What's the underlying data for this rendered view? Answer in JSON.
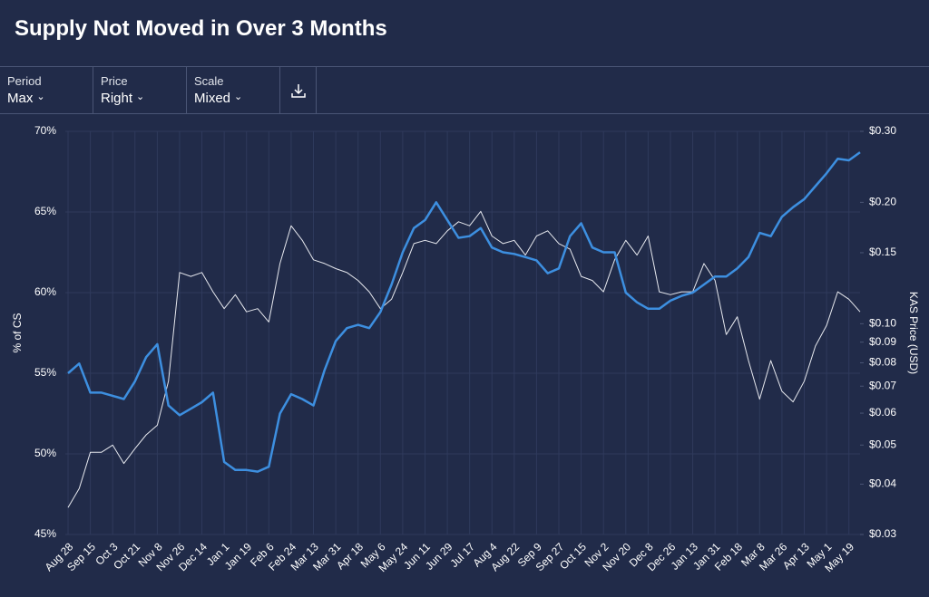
{
  "header": {
    "title": "Supply Not Moved in Over 3 Months"
  },
  "toolbar": [
    {
      "label": "Period",
      "value": "Max"
    },
    {
      "label": "Price",
      "value": "Right"
    },
    {
      "label": "Scale",
      "value": "Mixed"
    }
  ],
  "chart_data": {
    "type": "line",
    "ylabel": "% of CS",
    "y2label": "KAS Price (USD)",
    "ylim": [
      45,
      70
    ],
    "yticks": [
      {
        "value": 45,
        "label": "45%"
      },
      {
        "value": 50,
        "label": "50%"
      },
      {
        "value": 55,
        "label": "55%"
      },
      {
        "value": 60,
        "label": "60%"
      },
      {
        "value": 65,
        "label": "65%"
      },
      {
        "value": 70,
        "label": "70%"
      }
    ],
    "y2lim": [
      0.03,
      0.3
    ],
    "y2scale": "log",
    "y2ticks": [
      {
        "value": 0.03,
        "label": "$0.03"
      },
      {
        "value": 0.04,
        "label": "$0.04"
      },
      {
        "value": 0.05,
        "label": "$0.05"
      },
      {
        "value": 0.06,
        "label": "$0.06"
      },
      {
        "value": 0.07,
        "label": "$0.07"
      },
      {
        "value": 0.08,
        "label": "$0.08"
      },
      {
        "value": 0.09,
        "label": "$0.09"
      },
      {
        "value": 0.1,
        "label": "$0.10"
      },
      {
        "value": 0.15,
        "label": "$0.15"
      },
      {
        "value": 0.2,
        "label": "$0.20"
      },
      {
        "value": 0.3,
        "label": "$0.30"
      }
    ],
    "grid": true,
    "categories": [
      "Aug 28",
      null,
      "Sep 15",
      null,
      "Oct 3",
      null,
      "Oct 21",
      null,
      "Nov 8",
      null,
      "Nov 26",
      null,
      "Dec 14",
      null,
      "Jan 1",
      null,
      "Jan 19",
      null,
      "Feb 6",
      null,
      "Feb 24",
      null,
      "Mar 13",
      null,
      "Mar 31",
      null,
      "Apr 18",
      null,
      "May 6",
      null,
      "May 24",
      null,
      "Jun 11",
      null,
      "Jun 29",
      null,
      "Jul 17",
      null,
      "Aug 4",
      null,
      "Aug 22",
      null,
      "Sep 9",
      null,
      "Sep 27",
      null,
      "Oct 15",
      null,
      "Nov 2",
      null,
      "Nov 20",
      null,
      "Dec 8",
      null,
      "Dec 26",
      null,
      "Jan 13",
      null,
      "Jan 31",
      null,
      "Feb 18",
      null,
      "Mar 8",
      null,
      "Mar 26",
      null,
      "Apr 13",
      null,
      "May 1",
      null,
      "May 19",
      null
    ],
    "series": [
      {
        "color": "#3d8fe0",
        "axis": "y",
        "values": [
          55.0,
          55.6,
          53.8,
          53.8,
          53.6,
          53.4,
          54.5,
          56.0,
          56.8,
          53.0,
          52.4,
          52.8,
          53.2,
          53.8,
          49.5,
          49.0,
          49.0,
          48.9,
          49.2,
          52.5,
          53.7,
          53.4,
          53.0,
          55.2,
          57.0,
          57.8,
          58.0,
          57.8,
          58.8,
          60.5,
          62.5,
          64.0,
          64.5,
          65.6,
          64.5,
          63.4,
          63.5,
          64.0,
          62.8,
          62.5,
          62.4,
          62.2,
          62.0,
          61.2,
          61.5,
          63.5,
          64.3,
          62.8,
          62.5,
          62.5,
          60.0,
          59.4,
          59.0,
          59.0,
          59.5,
          59.8,
          60.0,
          60.5,
          61.0,
          61.0,
          61.5,
          62.2,
          63.7,
          63.5,
          64.7,
          65.3,
          65.8,
          66.6,
          67.4,
          68.3,
          68.2,
          68.7
        ]
      },
      {
        "color": "#e6e8ee",
        "axis": "y2",
        "values": [
          0.035,
          0.039,
          0.048,
          0.048,
          0.05,
          0.045,
          0.049,
          0.053,
          0.056,
          0.072,
          0.134,
          0.131,
          0.134,
          0.12,
          0.109,
          0.118,
          0.107,
          0.109,
          0.101,
          0.141,
          0.175,
          0.161,
          0.144,
          0.141,
          0.137,
          0.134,
          0.128,
          0.12,
          0.109,
          0.115,
          0.134,
          0.158,
          0.161,
          0.158,
          0.17,
          0.179,
          0.175,
          0.19,
          0.165,
          0.158,
          0.161,
          0.148,
          0.165,
          0.17,
          0.158,
          0.153,
          0.131,
          0.128,
          0.12,
          0.144,
          0.161,
          0.148,
          0.165,
          0.12,
          0.118,
          0.12,
          0.12,
          0.141,
          0.128,
          0.094,
          0.104,
          0.081,
          0.065,
          0.081,
          0.068,
          0.064,
          0.072,
          0.088,
          0.099,
          0.12,
          0.115,
          0.107
        ]
      }
    ]
  }
}
